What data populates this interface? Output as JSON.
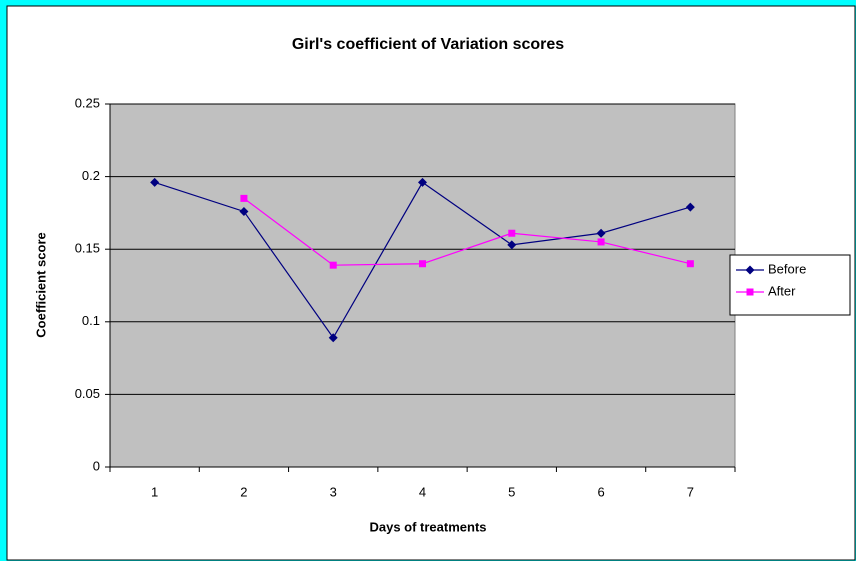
{
  "chart_data": {
    "type": "line",
    "title": "Girl's coefficient of Variation scores",
    "x_label": "Days of treatments",
    "y_label": "Coefficient score",
    "categories": [
      "1",
      "2",
      "3",
      "4",
      "5",
      "6",
      "7"
    ],
    "series": [
      {
        "name": "Before",
        "color": "#000080",
        "marker": "diamond",
        "values": [
          0.196,
          0.176,
          0.089,
          0.196,
          0.153,
          0.161,
          0.179
        ]
      },
      {
        "name": "After",
        "color": "#ff00ff",
        "marker": "square",
        "values": [
          null,
          0.185,
          0.139,
          0.14,
          0.161,
          0.155,
          0.14
        ]
      }
    ],
    "ylim": [
      0,
      0.25
    ],
    "yticks": [
      0,
      0.05,
      0.1,
      0.15,
      0.2,
      0.25
    ],
    "grid": true,
    "legend": "right",
    "plot_background": "#c0c0c0"
  }
}
